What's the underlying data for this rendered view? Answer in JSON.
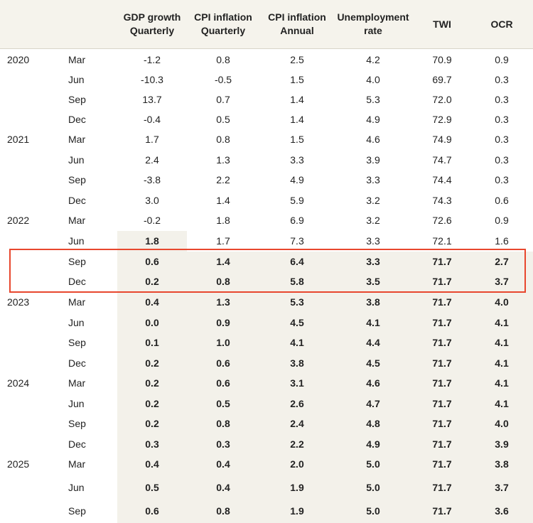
{
  "headers": [
    "GDP growth\nQuarterly",
    "CPI inflation\nQuarterly",
    "CPI inflation\nAnnual",
    "Unemployment\nrate",
    "TWI",
    "OCR"
  ],
  "rows": [
    {
      "year": "2020",
      "q": "Mar",
      "v": [
        "-1.2",
        "0.8",
        "2.5",
        "4.2",
        "70.9",
        "0.9"
      ],
      "fc": false
    },
    {
      "year": "",
      "q": "Jun",
      "v": [
        "-10.3",
        "-0.5",
        "1.5",
        "4.0",
        "69.7",
        "0.3"
      ],
      "fc": false
    },
    {
      "year": "",
      "q": "Sep",
      "v": [
        "13.7",
        "0.7",
        "1.4",
        "5.3",
        "72.0",
        "0.3"
      ],
      "fc": false
    },
    {
      "year": "",
      "q": "Dec",
      "v": [
        "-0.4",
        "0.5",
        "1.4",
        "4.9",
        "72.9",
        "0.3"
      ],
      "fc": false
    },
    {
      "year": "2021",
      "q": "Mar",
      "v": [
        "1.7",
        "0.8",
        "1.5",
        "4.6",
        "74.9",
        "0.3"
      ],
      "fc": false
    },
    {
      "year": "",
      "q": "Jun",
      "v": [
        "2.4",
        "1.3",
        "3.3",
        "3.9",
        "74.7",
        "0.3"
      ],
      "fc": false
    },
    {
      "year": "",
      "q": "Sep",
      "v": [
        "-3.8",
        "2.2",
        "4.9",
        "3.3",
        "74.4",
        "0.3"
      ],
      "fc": false
    },
    {
      "year": "",
      "q": "Dec",
      "v": [
        "3.0",
        "1.4",
        "5.9",
        "3.2",
        "74.3",
        "0.6"
      ],
      "fc": false
    },
    {
      "year": "2022",
      "q": "Mar",
      "v": [
        "-0.2",
        "1.8",
        "6.9",
        "3.2",
        "72.6",
        "0.9"
      ],
      "fc": false
    },
    {
      "year": "",
      "q": "Jun",
      "v": [
        "1.8",
        "1.7",
        "7.3",
        "3.3",
        "72.1",
        "1.6"
      ],
      "fc": false
    },
    {
      "year": "",
      "q": "Sep",
      "v": [
        "0.6",
        "1.4",
        "6.4",
        "3.3",
        "71.7",
        "2.7"
      ],
      "fc": true
    },
    {
      "year": "",
      "q": "Dec",
      "v": [
        "0.2",
        "0.8",
        "5.8",
        "3.5",
        "71.7",
        "3.7"
      ],
      "fc": true
    },
    {
      "year": "2023",
      "q": "Mar",
      "v": [
        "0.4",
        "1.3",
        "5.3",
        "3.8",
        "71.7",
        "4.0"
      ],
      "fc": true
    },
    {
      "year": "",
      "q": "Jun",
      "v": [
        "0.0",
        "0.9",
        "4.5",
        "4.1",
        "71.7",
        "4.1"
      ],
      "fc": true
    },
    {
      "year": "",
      "q": "Sep",
      "v": [
        "0.1",
        "1.0",
        "4.1",
        "4.4",
        "71.7",
        "4.1"
      ],
      "fc": true
    },
    {
      "year": "",
      "q": "Dec",
      "v": [
        "0.2",
        "0.6",
        "3.8",
        "4.5",
        "71.7",
        "4.1"
      ],
      "fc": true
    },
    {
      "year": "2024",
      "q": "Mar",
      "v": [
        "0.2",
        "0.6",
        "3.1",
        "4.6",
        "71.7",
        "4.1"
      ],
      "fc": true
    },
    {
      "year": "",
      "q": "Jun",
      "v": [
        "0.2",
        "0.5",
        "2.6",
        "4.7",
        "71.7",
        "4.1"
      ],
      "fc": true
    },
    {
      "year": "",
      "q": "Sep",
      "v": [
        "0.2",
        "0.8",
        "2.4",
        "4.8",
        "71.7",
        "4.0"
      ],
      "fc": true
    },
    {
      "year": "",
      "q": "Dec",
      "v": [
        "0.3",
        "0.3",
        "2.2",
        "4.9",
        "71.7",
        "3.9"
      ],
      "fc": true
    },
    {
      "year": "2025",
      "q": "Mar",
      "v": [
        "0.4",
        "0.4",
        "2.0",
        "5.0",
        "71.7",
        "3.8"
      ],
      "fc": true
    },
    {
      "year": "",
      "q": "Jun",
      "v": [
        "0.5",
        "0.4",
        "1.9",
        "5.0",
        "71.7",
        "3.7"
      ],
      "fc": true
    },
    {
      "year": "",
      "q": "Sep",
      "v": [
        "0.6",
        "0.8",
        "1.9",
        "5.0",
        "71.7",
        "3.6"
      ],
      "fc": true
    }
  ]
}
